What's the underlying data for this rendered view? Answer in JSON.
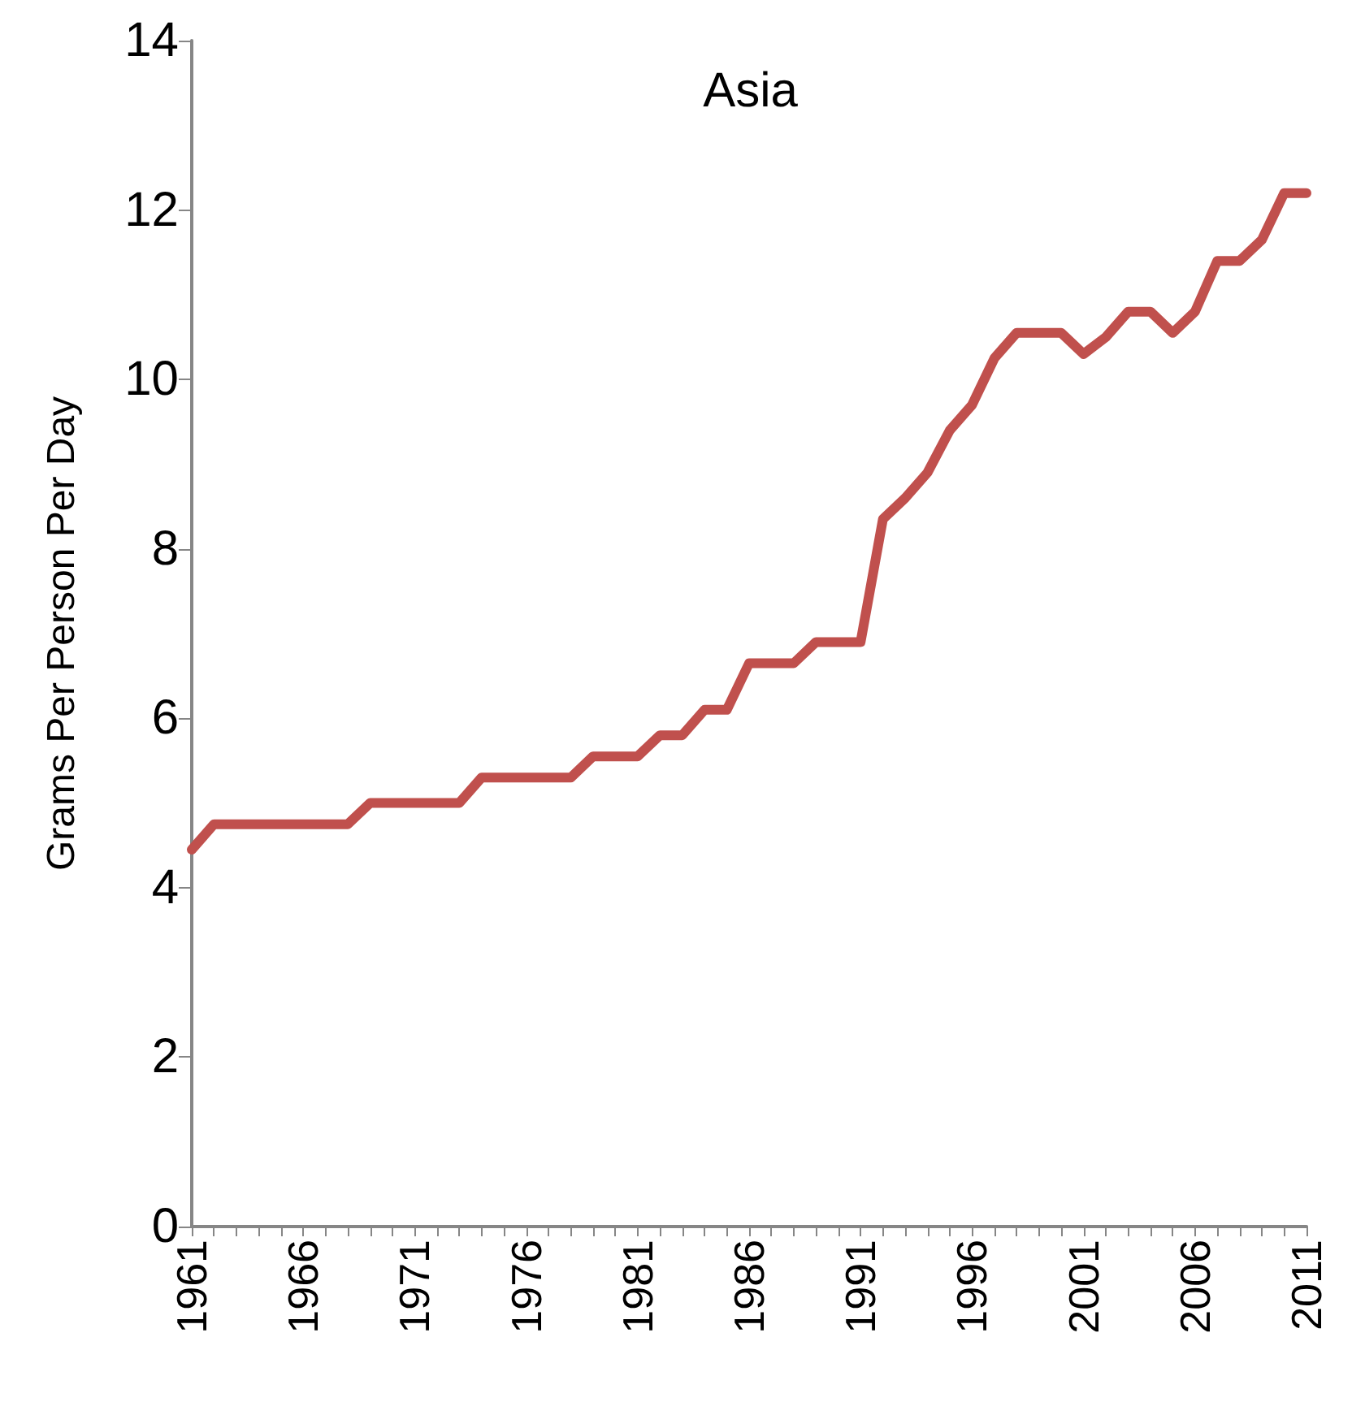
{
  "chart_data": {
    "type": "line",
    "title": "Asia",
    "ylabel": "Grams Per Person Per Day",
    "categories": [
      "1961",
      null,
      null,
      null,
      null,
      "1966",
      null,
      null,
      null,
      null,
      "1971",
      null,
      null,
      null,
      null,
      "1976",
      null,
      null,
      null,
      null,
      "1981",
      null,
      null,
      null,
      null,
      "1986",
      null,
      null,
      null,
      null,
      "1991",
      null,
      null,
      null,
      null,
      "1996",
      null,
      null,
      null,
      null,
      "2001",
      null,
      null,
      null,
      null,
      "2006",
      null,
      null,
      null,
      null,
      "2011"
    ],
    "series": [
      {
        "color": "#c0504d",
        "values": [
          4.45,
          4.75,
          4.75,
          4.75,
          4.75,
          4.75,
          4.75,
          4.75,
          5.0,
          5.0,
          5.0,
          5.0,
          5.0,
          5.3,
          5.3,
          5.3,
          5.3,
          5.3,
          5.55,
          5.55,
          5.55,
          5.8,
          5.8,
          6.1,
          6.1,
          6.65,
          6.65,
          6.65,
          6.9,
          6.9,
          6.9,
          8.35,
          8.6,
          8.9,
          9.4,
          9.7,
          10.25,
          10.55,
          10.55,
          10.55,
          10.3,
          10.5,
          10.8,
          10.8,
          10.55,
          10.8,
          11.4,
          11.4,
          11.65,
          12.2,
          12.2
        ]
      }
    ],
    "ylim": [
      0,
      14
    ],
    "yticks": [
      0,
      2,
      4,
      6,
      8,
      10,
      12,
      14
    ],
    "grid": false,
    "marker": "none",
    "line_style": "solid"
  }
}
